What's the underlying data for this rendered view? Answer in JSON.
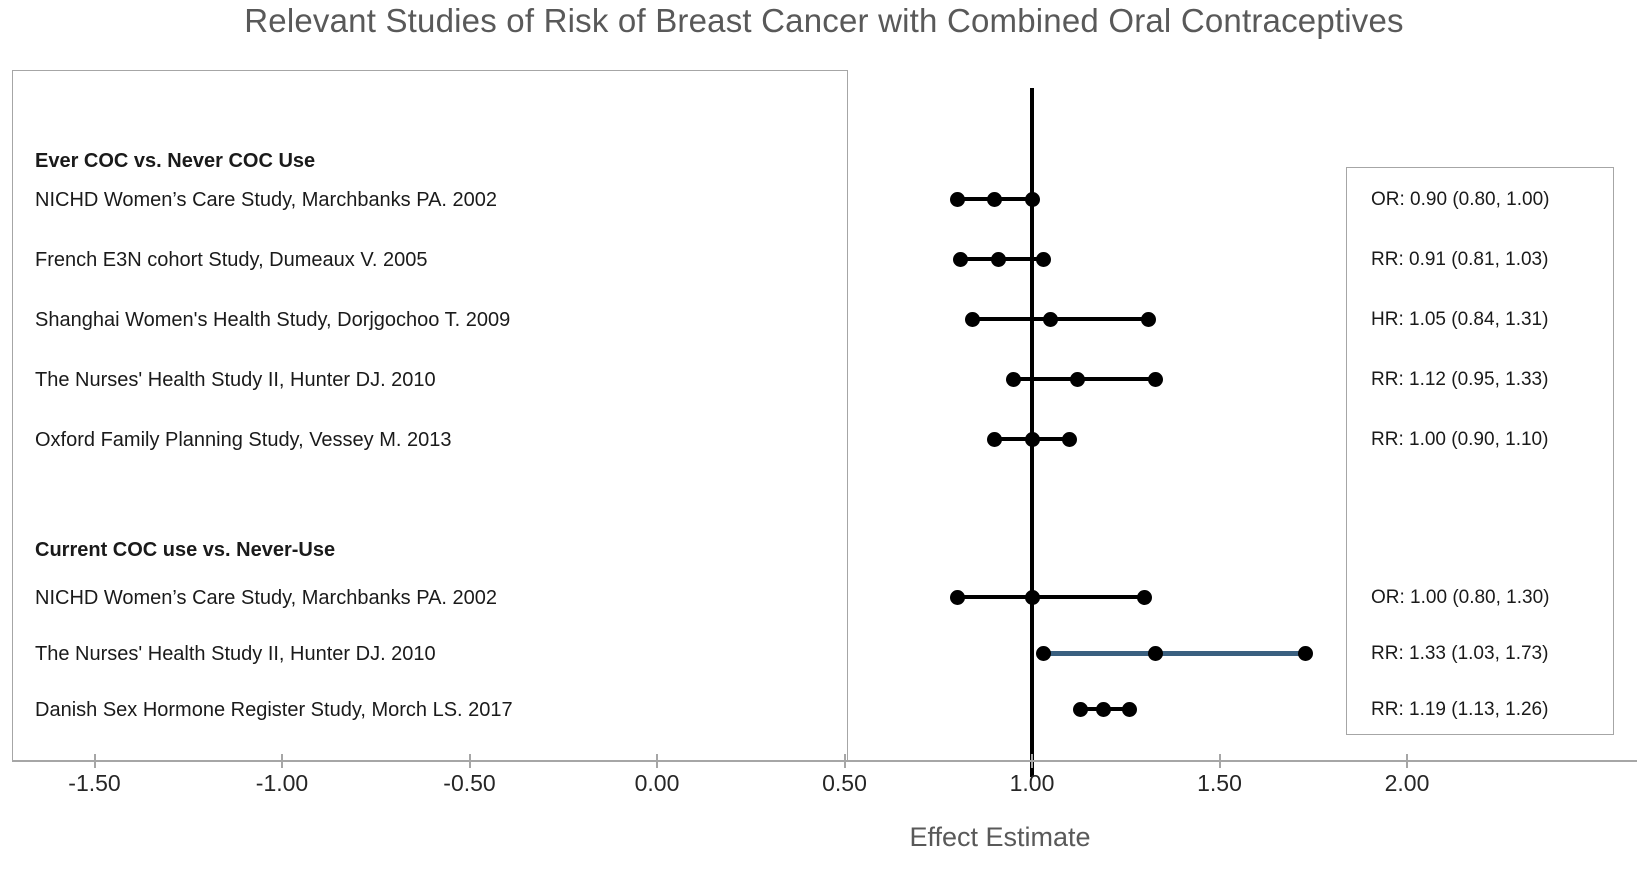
{
  "title": "Relevant Studies of Risk of Breast Cancer with Combined Oral Contraceptives",
  "chart_data": {
    "type": "scatter",
    "subtype": "forest-plot",
    "title": "Relevant Studies of Risk of Breast Cancer with Combined Oral Contraceptives",
    "xlabel": "Effect Estimate",
    "x_ticks": [
      -1.5,
      -1.0,
      -0.5,
      0.0,
      0.5,
      1.0,
      1.5,
      2.0
    ],
    "x_tick_labels": [
      "-1.50",
      "-1.00",
      "-0.50",
      "0.00",
      "0.50",
      "1.00",
      "1.50",
      "2.00"
    ],
    "reference_line_x": 1.0,
    "grid": false,
    "legend_position": "none",
    "groups": [
      {
        "header": "Ever COC vs. Never COC Use",
        "studies": [
          {
            "label": "NICHD Women’s Care Study, Marchbanks PA. 2002",
            "measure": "OR",
            "estimate": 0.9,
            "ci_low": 0.8,
            "ci_high": 1.0,
            "estimate_text": "OR: 0.90 (0.80, 1.00)"
          },
          {
            "label": "French E3N cohort Study, Dumeaux V. 2005",
            "measure": "RR",
            "estimate": 0.91,
            "ci_low": 0.81,
            "ci_high": 1.03,
            "estimate_text": "RR: 0.91 (0.81, 1.03)"
          },
          {
            "label": "Shanghai Women's Health Study, Dorjgochoo T. 2009",
            "measure": "HR",
            "estimate": 1.05,
            "ci_low": 0.84,
            "ci_high": 1.31,
            "estimate_text": "HR: 1.05 (0.84, 1.31)"
          },
          {
            "label": "The Nurses' Health Study II, Hunter DJ. 2010",
            "measure": "RR",
            "estimate": 1.12,
            "ci_low": 0.95,
            "ci_high": 1.33,
            "estimate_text": "RR: 1.12 (0.95, 1.33)"
          },
          {
            "label": "Oxford Family Planning Study, Vessey M. 2013",
            "measure": "RR",
            "estimate": 1.0,
            "ci_low": 0.9,
            "ci_high": 1.1,
            "estimate_text": "RR: 1.00 (0.90, 1.10)"
          }
        ]
      },
      {
        "header": "Current COC use vs. Never-Use",
        "studies": [
          {
            "label": "NICHD Women’s Care Study, Marchbanks PA. 2002",
            "measure": "OR",
            "estimate": 1.0,
            "ci_low": 0.8,
            "ci_high": 1.3,
            "estimate_text": "OR: 1.00 (0.80, 1.30)"
          },
          {
            "label": "The Nurses' Health Study II, Hunter DJ. 2010",
            "measure": "RR",
            "estimate": 1.33,
            "ci_low": 1.03,
            "ci_high": 1.73,
            "estimate_text": "RR: 1.33 (1.03, 1.73)",
            "line_color": "#3a6080"
          },
          {
            "label": "Danish Sex Hormone Register Study, Morch LS. 2017",
            "measure": "RR",
            "estimate": 1.19,
            "ci_low": 1.13,
            "ci_high": 1.26,
            "estimate_text": "RR: 1.19 (1.13, 1.26)"
          }
        ]
      }
    ],
    "colors": {
      "marker": "#000000",
      "ci_line": "#000000",
      "highlight_ci_line": "#3a6080",
      "reference_line": "#000000",
      "title_text": "#595959",
      "axis_title_text": "#595959",
      "tick_text": "#262626",
      "panel_border": "#a6a6a6"
    }
  }
}
